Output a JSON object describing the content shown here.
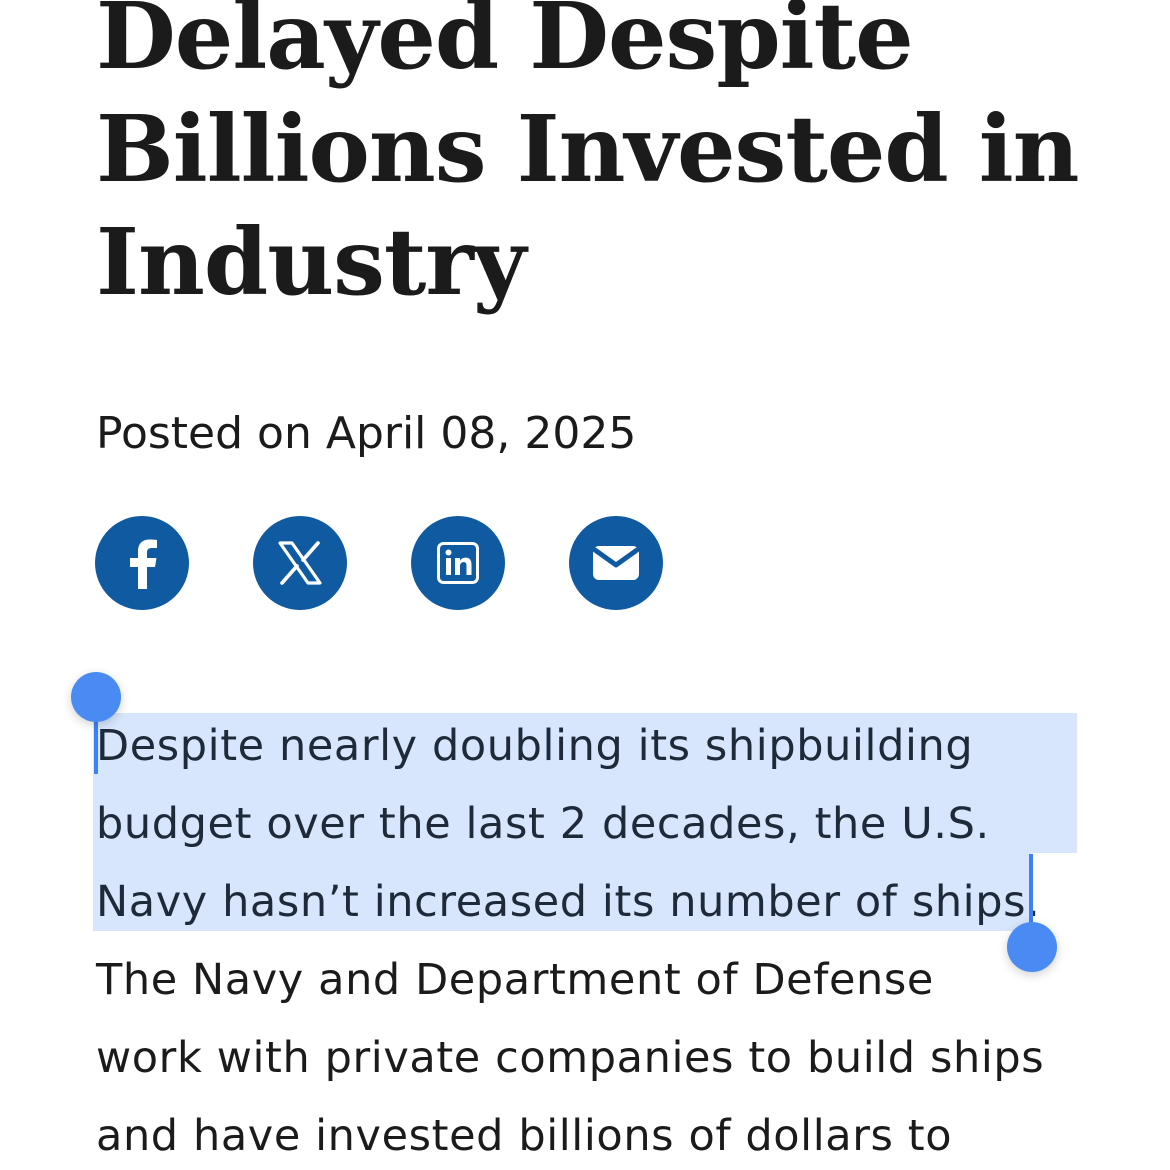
{
  "article": {
    "headline_lines": [
      "Delayed Despite",
      "Billions Invested in",
      "Industry"
    ],
    "posted": "Posted on April 08, 2025",
    "share": [
      {
        "icon": "facebook-icon",
        "label": "f"
      },
      {
        "icon": "x-icon",
        "label": "X"
      },
      {
        "icon": "linkedin-icon",
        "label": "in"
      },
      {
        "icon": "email-icon",
        "label": "email"
      }
    ],
    "body_lines": [
      "Despite nearly doubling its shipbuilding",
      "budget over the last 2 decades, the U.S.",
      "Navy hasn’t increased its number of ships.",
      "The Navy and Department of Defense",
      "work with private companies to build ships",
      "and have invested billions of dollars to"
    ]
  },
  "colors": {
    "share_button": "#0f5aa0",
    "selection": "#d8e6fd",
    "selection_handle": "#4a8bf3",
    "text": "#1b1b1b"
  }
}
